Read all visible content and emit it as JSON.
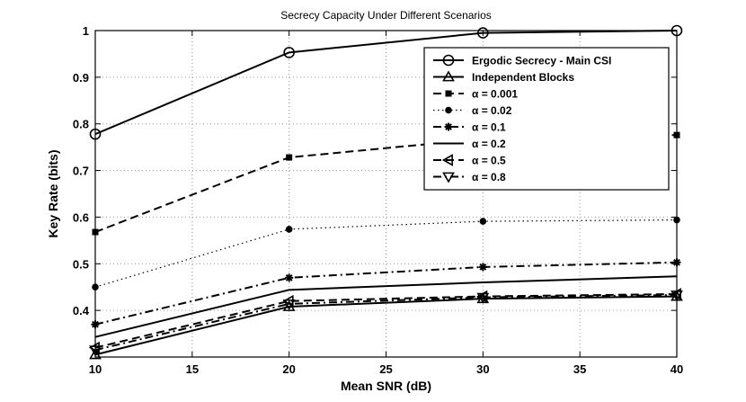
{
  "chart_data": {
    "type": "line",
    "title": "Secrecy Capacity Under Different Scenarios",
    "xlabel": "Mean SNR (dB)",
    "ylabel": "Key Rate (bits)",
    "xlim": [
      10,
      40
    ],
    "ylim": [
      0.3,
      1.0
    ],
    "xticks": [
      10,
      15,
      20,
      25,
      30,
      35,
      40
    ],
    "yticks": [
      0.4,
      0.5,
      0.6,
      0.7,
      0.8,
      0.9,
      1.0
    ],
    "xtick_labels": [
      "10",
      "15",
      "20",
      "25",
      "30",
      "35",
      "40"
    ],
    "ytick_labels": [
      "0.4",
      "0.5",
      "0.6",
      "0.7",
      "0.8",
      "0.9",
      "1"
    ],
    "grid": true,
    "legend_position": "top-right",
    "x": [
      10,
      20,
      30,
      40
    ],
    "series": [
      {
        "name": "Ergodic Secrecy - Main CSI",
        "values": [
          0.778,
          0.953,
          0.995,
          1.0
        ],
        "line": "solid",
        "width": 2,
        "marker": "circle"
      },
      {
        "name": "Independent Blocks",
        "values": [
          0.305,
          0.408,
          0.425,
          0.43
        ],
        "line": "solid",
        "width": 2,
        "marker": "triangle-up"
      },
      {
        "name": "α = 0.001",
        "values": [
          0.568,
          0.728,
          0.768,
          0.776
        ],
        "line": "dashed",
        "width": 2,
        "marker": "square"
      },
      {
        "name": "α = 0.02",
        "values": [
          0.45,
          0.574,
          0.591,
          0.594
        ],
        "line": "dotted",
        "width": 1.2,
        "marker": "dot"
      },
      {
        "name": "α = 0.1",
        "values": [
          0.37,
          0.47,
          0.493,
          0.503
        ],
        "line": "dashdot",
        "width": 2,
        "marker": "star"
      },
      {
        "name": "α = 0.2",
        "values": [
          0.343,
          0.444,
          0.46,
          0.473
        ],
        "line": "solid",
        "width": 2,
        "marker": "none"
      },
      {
        "name": "α = 0.5",
        "values": [
          0.32,
          0.42,
          0.43,
          0.435
        ],
        "line": "dashed",
        "width": 2,
        "marker": "triangle-left"
      },
      {
        "name": "α = 0.8",
        "values": [
          0.315,
          0.414,
          0.428,
          0.433
        ],
        "line": "dashdot",
        "width": 2,
        "marker": "triangle-down"
      }
    ]
  }
}
